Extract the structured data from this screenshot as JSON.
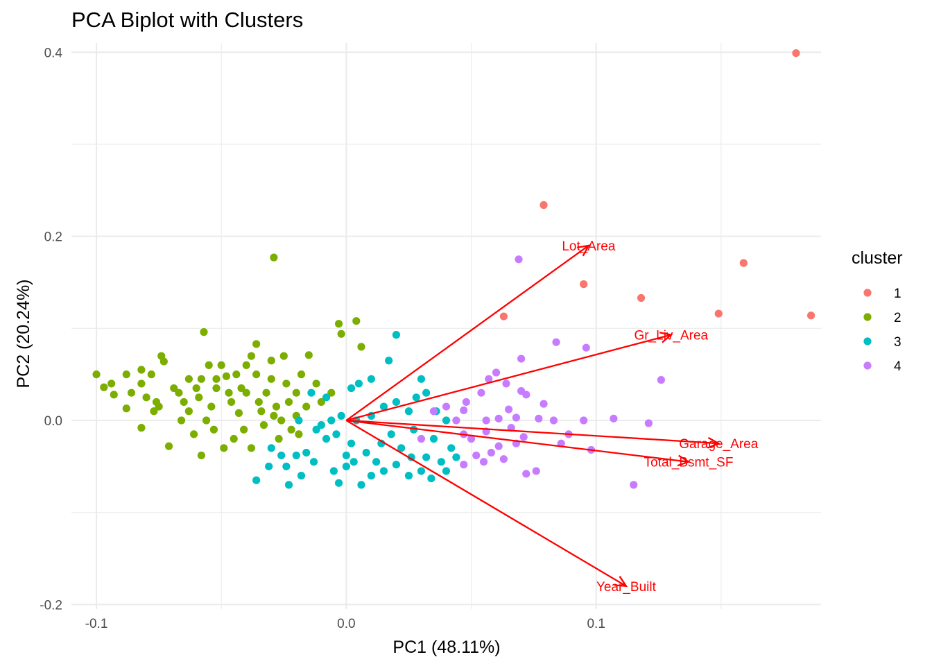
{
  "chart_data": {
    "type": "scatter",
    "subtype": "pca-biplot",
    "title": "PCA Biplot with Clusters",
    "xlabel": "PC1 (48.11%)",
    "ylabel": "PC2 (20.24%)",
    "xlim": [
      -0.11,
      0.19
    ],
    "ylim": [
      -0.205,
      0.41
    ],
    "x_ticks": [
      -0.1,
      0.0,
      0.1
    ],
    "x_tick_labels": [
      "-0.1",
      "0.0",
      "0.1"
    ],
    "y_ticks": [
      -0.2,
      0.0,
      0.2,
      0.4
    ],
    "y_tick_labels": [
      "-0.2",
      "0.0",
      "0.2",
      "0.4"
    ],
    "grid": true,
    "legend": {
      "title": "cluster",
      "position": "right",
      "entries": [
        {
          "label": "1",
          "color": "#F8766D"
        },
        {
          "label": "2",
          "color": "#7CAE00"
        },
        {
          "label": "3",
          "color": "#00BFC4"
        },
        {
          "label": "4",
          "color": "#C77CFF"
        }
      ]
    },
    "series": [
      {
        "cluster": "1",
        "color": "#F8766D",
        "points": [
          [
            0.18,
            0.399
          ],
          [
            0.079,
            0.234
          ],
          [
            0.159,
            0.171
          ],
          [
            0.095,
            0.148
          ],
          [
            0.118,
            0.133
          ],
          [
            0.063,
            0.113
          ],
          [
            0.149,
            0.116
          ],
          [
            0.186,
            0.114
          ]
        ]
      },
      {
        "cluster": "2",
        "color": "#7CAE00",
        "points": [
          [
            -0.029,
            0.177
          ],
          [
            0.004,
            0.108
          ],
          [
            -0.003,
            0.105
          ],
          [
            -0.002,
            0.094
          ],
          [
            0.006,
            0.08
          ],
          [
            -0.036,
            0.083
          ],
          [
            -0.057,
            0.096
          ],
          [
            -0.088,
            0.05
          ],
          [
            -0.097,
            0.036
          ],
          [
            -0.1,
            0.05
          ],
          [
            -0.094,
            0.04
          ],
          [
            -0.086,
            0.03
          ],
          [
            -0.093,
            0.028
          ],
          [
            -0.088,
            0.013
          ],
          [
            -0.082,
            0.055
          ],
          [
            -0.074,
            0.07
          ],
          [
            -0.078,
            0.05
          ],
          [
            -0.082,
            0.04
          ],
          [
            -0.08,
            0.025
          ],
          [
            -0.076,
            0.02
          ],
          [
            -0.073,
            0.064
          ],
          [
            -0.069,
            0.035
          ],
          [
            -0.075,
            0.015
          ],
          [
            -0.077,
            0.01
          ],
          [
            -0.082,
            -0.008
          ],
          [
            -0.063,
            0.045
          ],
          [
            -0.065,
            0.02
          ],
          [
            -0.063,
            0.01
          ],
          [
            -0.066,
            0.0
          ],
          [
            -0.071,
            -0.028
          ],
          [
            -0.058,
            0.045
          ],
          [
            -0.055,
            0.06
          ],
          [
            -0.059,
            0.025
          ],
          [
            -0.056,
            0.0
          ],
          [
            -0.061,
            -0.015
          ],
          [
            -0.05,
            0.06
          ],
          [
            -0.048,
            0.048
          ],
          [
            -0.052,
            0.035
          ],
          [
            -0.054,
            0.015
          ],
          [
            -0.053,
            -0.01
          ],
          [
            -0.049,
            -0.03
          ],
          [
            -0.058,
            -0.038
          ],
          [
            -0.044,
            0.05
          ],
          [
            -0.04,
            0.06
          ],
          [
            -0.046,
            0.02
          ],
          [
            -0.043,
            0.008
          ],
          [
            -0.045,
            -0.02
          ],
          [
            -0.038,
            0.07
          ],
          [
            -0.036,
            0.05
          ],
          [
            -0.04,
            0.03
          ],
          [
            -0.035,
            0.02
          ],
          [
            -0.041,
            -0.01
          ],
          [
            -0.038,
            -0.03
          ],
          [
            -0.03,
            0.065
          ],
          [
            -0.03,
            0.045
          ],
          [
            -0.032,
            0.03
          ],
          [
            -0.028,
            0.015
          ],
          [
            -0.033,
            -0.005
          ],
          [
            -0.027,
            -0.02
          ],
          [
            -0.025,
            0.07
          ],
          [
            -0.024,
            0.04
          ],
          [
            -0.023,
            0.02
          ],
          [
            -0.02,
            0.03
          ],
          [
            -0.018,
            0.05
          ],
          [
            -0.015,
            0.071
          ],
          [
            -0.02,
            0.005
          ],
          [
            -0.016,
            0.015
          ],
          [
            -0.012,
            0.04
          ],
          [
            -0.01,
            0.02
          ],
          [
            -0.006,
            0.03
          ],
          [
            -0.026,
            0.0
          ],
          [
            -0.022,
            -0.01
          ],
          [
            -0.052,
            0.045
          ],
          [
            -0.047,
            0.03
          ],
          [
            -0.042,
            0.035
          ],
          [
            -0.034,
            0.01
          ],
          [
            -0.029,
            0.005
          ],
          [
            -0.019,
            -0.015
          ],
          [
            -0.06,
            0.035
          ],
          [
            -0.067,
            0.03
          ]
        ]
      },
      {
        "cluster": "3",
        "color": "#00BFC4",
        "points": [
          [
            0.02,
            0.093
          ],
          [
            0.017,
            0.065
          ],
          [
            0.03,
            0.045
          ],
          [
            0.032,
            0.03
          ],
          [
            0.01,
            0.045
          ],
          [
            0.005,
            0.04
          ],
          [
            0.002,
            0.035
          ],
          [
            -0.008,
            0.025
          ],
          [
            -0.014,
            0.03
          ],
          [
            -0.019,
            0.0
          ],
          [
            -0.012,
            -0.01
          ],
          [
            -0.008,
            -0.02
          ],
          [
            -0.016,
            -0.035
          ],
          [
            -0.024,
            -0.05
          ],
          [
            -0.031,
            -0.05
          ],
          [
            -0.036,
            -0.065
          ],
          [
            -0.023,
            -0.07
          ],
          [
            -0.018,
            -0.06
          ],
          [
            -0.005,
            -0.055
          ],
          [
            0.0,
            -0.05
          ],
          [
            0.003,
            -0.045
          ],
          [
            0.01,
            -0.06
          ],
          [
            0.006,
            -0.07
          ],
          [
            -0.003,
            -0.068
          ],
          [
            0.015,
            -0.055
          ],
          [
            0.02,
            -0.048
          ],
          [
            0.025,
            -0.06
          ],
          [
            0.03,
            -0.055
          ],
          [
            0.034,
            -0.063
          ],
          [
            0.04,
            -0.055
          ],
          [
            0.042,
            -0.03
          ],
          [
            0.035,
            -0.02
          ],
          [
            0.027,
            -0.01
          ],
          [
            0.025,
            0.01
          ],
          [
            0.015,
            0.015
          ],
          [
            0.01,
            0.005
          ],
          [
            0.004,
            0.0
          ],
          [
            -0.002,
            0.005
          ],
          [
            -0.006,
            0.0
          ],
          [
            -0.01,
            -0.005
          ],
          [
            -0.004,
            -0.015
          ],
          [
            0.002,
            -0.025
          ],
          [
            0.008,
            -0.035
          ],
          [
            0.014,
            -0.025
          ],
          [
            0.018,
            -0.015
          ],
          [
            0.022,
            -0.03
          ],
          [
            0.026,
            -0.04
          ],
          [
            0.032,
            -0.04
          ],
          [
            0.038,
            -0.045
          ],
          [
            0.044,
            -0.04
          ],
          [
            -0.03,
            -0.03
          ],
          [
            -0.02,
            -0.038
          ],
          [
            -0.013,
            -0.045
          ],
          [
            0.0,
            -0.038
          ],
          [
            0.012,
            -0.045
          ],
          [
            0.028,
            0.025
          ],
          [
            0.02,
            0.02
          ],
          [
            0.036,
            0.01
          ],
          [
            0.04,
            0.0
          ],
          [
            -0.026,
            -0.038
          ]
        ]
      },
      {
        "cluster": "4",
        "color": "#C77CFF",
        "points": [
          [
            0.069,
            0.175
          ],
          [
            0.084,
            0.085
          ],
          [
            0.096,
            0.079
          ],
          [
            0.07,
            0.067
          ],
          [
            0.126,
            0.044
          ],
          [
            0.06,
            0.052
          ],
          [
            0.057,
            0.045
          ],
          [
            0.064,
            0.04
          ],
          [
            0.07,
            0.032
          ],
          [
            0.072,
            0.028
          ],
          [
            0.079,
            0.018
          ],
          [
            0.054,
            0.03
          ],
          [
            0.048,
            0.02
          ],
          [
            0.047,
            0.011
          ],
          [
            0.056,
            0.0
          ],
          [
            0.061,
            0.002
          ],
          [
            0.068,
            0.003
          ],
          [
            0.077,
            0.002
          ],
          [
            0.083,
            0.0
          ],
          [
            0.095,
            0.0
          ],
          [
            0.107,
            0.002
          ],
          [
            0.121,
            -0.003
          ],
          [
            0.089,
            -0.015
          ],
          [
            0.071,
            -0.018
          ],
          [
            0.068,
            -0.025
          ],
          [
            0.061,
            -0.028
          ],
          [
            0.058,
            -0.035
          ],
          [
            0.052,
            -0.038
          ],
          [
            0.047,
            -0.048
          ],
          [
            0.055,
            -0.045
          ],
          [
            0.063,
            -0.042
          ],
          [
            0.072,
            -0.058
          ],
          [
            0.076,
            -0.055
          ],
          [
            0.098,
            -0.032
          ],
          [
            0.115,
            -0.07
          ],
          [
            0.047,
            -0.015
          ],
          [
            0.05,
            -0.02
          ],
          [
            0.056,
            -0.012
          ],
          [
            0.066,
            -0.008
          ],
          [
            0.086,
            -0.025
          ],
          [
            0.035,
            0.01
          ],
          [
            0.04,
            0.015
          ],
          [
            0.044,
            0.0
          ],
          [
            0.03,
            -0.02
          ],
          [
            0.065,
            0.012
          ]
        ]
      }
    ],
    "loadings": [
      {
        "label": "Lot_Area",
        "x": 0.097,
        "y": 0.19
      },
      {
        "label": "Gr_Liv_Area",
        "x": 0.13,
        "y": 0.093
      },
      {
        "label": "Garage_Area",
        "x": 0.149,
        "y": -0.025
      },
      {
        "label": "Total_Bsmt_SF",
        "x": 0.137,
        "y": -0.045
      },
      {
        "label": "Year_Built",
        "x": 0.112,
        "y": -0.18
      }
    ],
    "loading_color": "#FF0000"
  }
}
